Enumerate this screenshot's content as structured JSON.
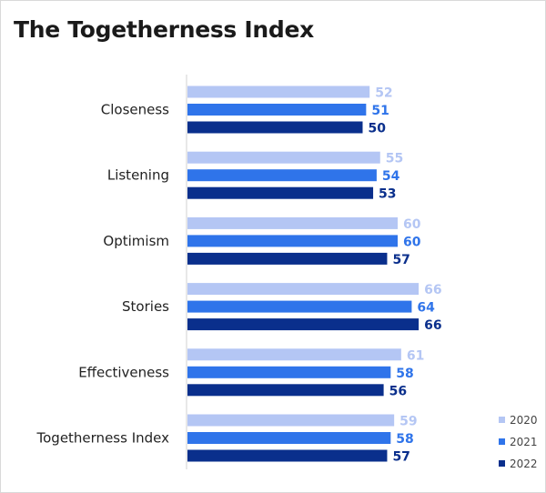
{
  "chart_data": {
    "type": "bar",
    "orientation": "horizontal",
    "title": "The Togetherness Index",
    "categories": [
      "Closeness",
      "Listening",
      "Optimism",
      "Stories",
      "Effectiveness",
      "Togetherness Index"
    ],
    "series": [
      {
        "name": "2020",
        "color": "#b4c6f4",
        "values": [
          52,
          55,
          60,
          66,
          61,
          59
        ]
      },
      {
        "name": "2021",
        "color": "#2f74ea",
        "values": [
          51,
          54,
          60,
          64,
          58,
          58
        ]
      },
      {
        "name": "2022",
        "color": "#0a2f8c",
        "values": [
          50,
          53,
          57,
          66,
          56,
          57
        ]
      }
    ],
    "xlim": [
      0,
      100
    ],
    "grid": false,
    "axis_labels_shown": false,
    "data_labels": true,
    "legend_position": "bottom-right"
  }
}
